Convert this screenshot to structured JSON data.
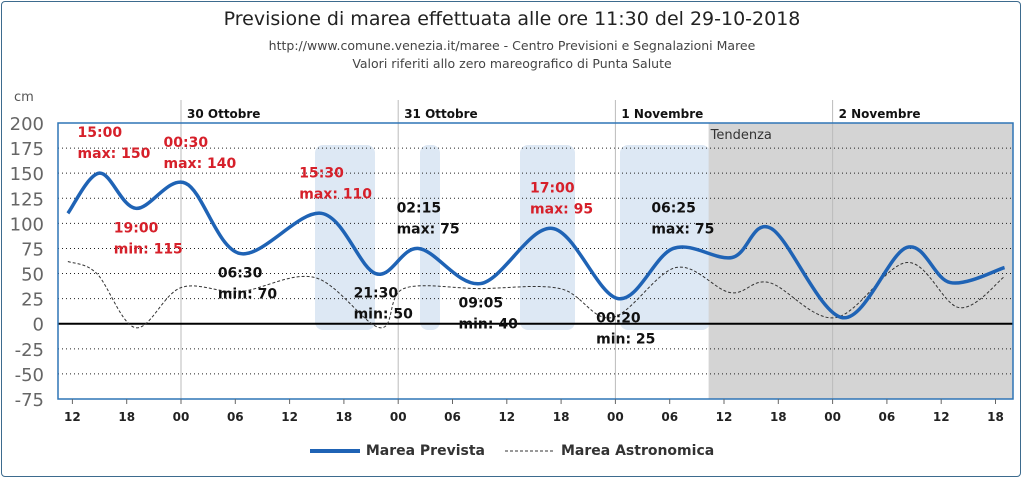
{
  "chart_data": {
    "type": "line",
    "title": "Previsione di marea effettuata alle ore 11:30 del 29-10-2018",
    "subtitle1": "http://www.comune.venezia.it/maree - Centro Previsioni e Segnalazioni Maree",
    "subtitle2": "Valori riferiti allo zero mareografico di Punta Salute",
    "ylabel": "cm",
    "ylim": [
      -75,
      200
    ],
    "yticks": [
      200,
      175,
      150,
      125,
      100,
      75,
      50,
      25,
      0,
      -25,
      -50,
      -75
    ],
    "x_unit": "hours since 29-10-2018 00:00",
    "xlim": [
      10,
      116
    ],
    "xticks": [
      {
        "h": 12,
        "label": "12"
      },
      {
        "h": 18,
        "label": "18"
      },
      {
        "h": 24,
        "label": "00"
      },
      {
        "h": 30,
        "label": "06"
      },
      {
        "h": 36,
        "label": "12"
      },
      {
        "h": 42,
        "label": "18"
      },
      {
        "h": 48,
        "label": "00"
      },
      {
        "h": 54,
        "label": "06"
      },
      {
        "h": 60,
        "label": "12"
      },
      {
        "h": 66,
        "label": "18"
      },
      {
        "h": 72,
        "label": "00"
      },
      {
        "h": 78,
        "label": "06"
      },
      {
        "h": 84,
        "label": "12"
      },
      {
        "h": 90,
        "label": "18"
      },
      {
        "h": 96,
        "label": "00"
      },
      {
        "h": 102,
        "label": "06"
      },
      {
        "h": 108,
        "label": "12"
      },
      {
        "h": 114,
        "label": "18"
      }
    ],
    "days": [
      {
        "h": 24,
        "label": "30 Ottobre"
      },
      {
        "h": 48,
        "label": "31 Ottobre"
      },
      {
        "h": 72,
        "label": "1 Novembre"
      },
      {
        "h": 96,
        "label": "2 Novembre"
      }
    ],
    "tendenza": {
      "from_h": 82.3,
      "label": "Tendenza"
    },
    "series": [
      {
        "name": "Marea Prevista",
        "color": "#1f63b5",
        "x": [
          11.5,
          15,
          19,
          24.5,
          30.5,
          39.5,
          45.5,
          50.25,
          57.1,
          65,
          72.3,
          78.4,
          84.9,
          89.2,
          97.1,
          104.2,
          109,
          115
        ],
        "y": [
          110,
          150,
          115,
          140,
          70,
          110,
          50,
          75,
          40,
          95,
          25,
          75,
          66,
          95,
          6,
          76,
          41,
          56
        ]
      },
      {
        "name": "Marea Astronomica",
        "color": "#333333",
        "x": [
          11.5,
          14.7,
          19,
          24,
          30.5,
          38.8,
          46,
          48.6,
          57,
          65.9,
          71.6,
          78.7,
          84.7,
          89,
          96.3,
          104.2,
          110,
          115
        ],
        "y": [
          62,
          50,
          -4,
          36,
          32,
          46,
          -4,
          35,
          35,
          35,
          6,
          56,
          31,
          41,
          6,
          61,
          16,
          47
        ]
      }
    ],
    "annotations": [
      {
        "h": 15,
        "v": 150,
        "time": "15:00",
        "text": "max: 150",
        "color": "#d6202a"
      },
      {
        "h": 19,
        "v": 115,
        "time": "19:00",
        "text": "min: 115",
        "color": "#d6202a"
      },
      {
        "h": 24.5,
        "v": 140,
        "time": "00:30",
        "text": "max: 140",
        "color": "#d6202a"
      },
      {
        "h": 30.5,
        "v": 70,
        "time": "06:30",
        "text": "min: 70",
        "color": "#111111"
      },
      {
        "h": 39.5,
        "v": 110,
        "time": "15:30",
        "text": "max: 110",
        "color": "#d6202a"
      },
      {
        "h": 45.5,
        "v": 50,
        "time": "21:30",
        "text": "min: 50",
        "color": "#111111"
      },
      {
        "h": 50.25,
        "v": 75,
        "time": "02:15",
        "text": "max: 75",
        "color": "#111111"
      },
      {
        "h": 57.1,
        "v": 40,
        "time": "09:05",
        "text": "min: 40",
        "color": "#111111"
      },
      {
        "h": 65,
        "v": 95,
        "time": "17:00",
        "text": "max: 95",
        "color": "#d6202a"
      },
      {
        "h": 72.3,
        "v": 25,
        "time": "00:20",
        "text": "min: 25",
        "color": "#111111"
      },
      {
        "h": 78.4,
        "v": 75,
        "time": "06:25",
        "text": "max: 75",
        "color": "#111111"
      }
    ],
    "legend": "bottom"
  }
}
